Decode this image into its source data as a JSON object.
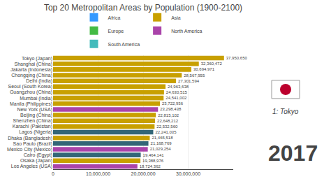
{
  "chart_data": {
    "type": "bar",
    "orientation": "horizontal",
    "title": "Top 20 Metropolitan Areas by Population (1900-2100)",
    "categories": [
      "Tokyo (Japan)",
      "Shanghai (China)",
      "Jakarta (Indonesia)",
      "Chongqing (China)",
      "Delhi (India)",
      "Seoul (South Korea)",
      "Guangzhou (China)",
      "Mumbai (India)",
      "Manila (Philippines)",
      "New York (USA)",
      "Beijing (China)",
      "Shenzhen (China)",
      "Karachi (Pakistan)",
      "Lagos (Nigeria)",
      "Dhaka (Bangladesh)",
      "Sao Paulo (Brazil)",
      "Mexico City (Mexico)",
      "Cairo (Egypt)",
      "Osaka (Japan)",
      "Los Angeles (USA)"
    ],
    "values": [
      37950650,
      32360472,
      30694971,
      28567955,
      27301594,
      24963638,
      24630515,
      24541002,
      23722936,
      23298438,
      22815102,
      22648212,
      22532560,
      22241035,
      21465518,
      21168769,
      21029254,
      19464141,
      19388976,
      18724362
    ],
    "value_labels": [
      "37,950,650",
      "32,360,472",
      "30,694,971",
      "28,567,955",
      "27,301,594",
      "24,963,638",
      "24,630,515",
      "24,541,002",
      "23,722,936",
      "23,298,438",
      "22,815,102",
      "22,648,212",
      "22,532,560",
      "22,241,035",
      "21,465,518",
      "21,168,769",
      "21,029,254",
      "19,464,141",
      "19,388,976",
      "18,724,362"
    ],
    "data_labels": true,
    "colors": [
      "#c8a000",
      "#c8a000",
      "#c8a000",
      "#c8a000",
      "#c8a000",
      "#c8a000",
      "#c8a000",
      "#c8a000",
      "#c8a000",
      "#aa44aa",
      "#c8a000",
      "#c8a000",
      "#c8a000",
      "#336677",
      "#c8a000",
      "#336677",
      "#aa44aa",
      "#336677",
      "#c8a000",
      "#aa44aa"
    ],
    "series": [
      {
        "name": "Africa",
        "color": "#3399ff"
      },
      {
        "name": "Asia",
        "color": "#c8a000"
      },
      {
        "name": "Europe",
        "color": "#44bb44"
      },
      {
        "name": "North America",
        "color": "#aa44aa"
      },
      {
        "name": "South America",
        "color": "#44bbbb"
      }
    ],
    "legend": "top",
    "xlim": [
      0,
      40000000
    ],
    "xticks": [
      0,
      {
        "value": 10000000,
        "label": "10,000,000"
      },
      {
        "value": 20000000,
        "label": "20,000,000"
      },
      {
        "value": 30000000,
        "label": "30,000,000"
      }
    ],
    "grid": true,
    "annotations": [
      "1: Tokyo",
      "2017"
    ]
  }
}
